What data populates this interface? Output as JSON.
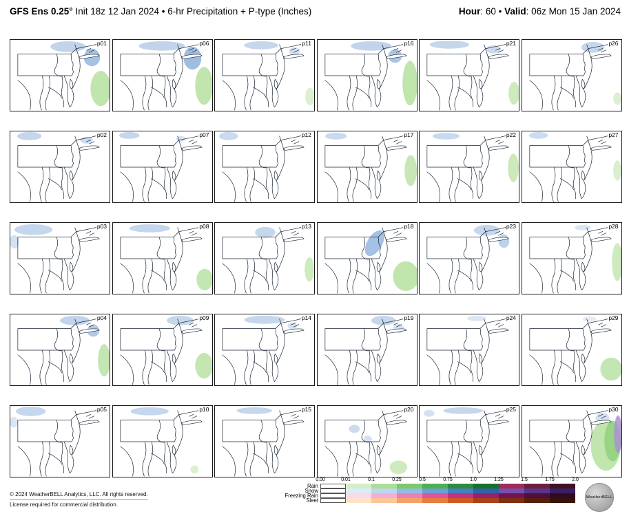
{
  "header": {
    "title_bold": "GFS Ens 0.25°",
    "title_rest": " Init 18z 12 Jan 2024 • 6-hr Precipitation + P-type (Inches)",
    "hour_label": "Hour",
    "hour_rest": ": 60 • ",
    "valid_label": "Valid",
    "valid_rest": ": 06z Mon 15 Jan 2024"
  },
  "colors": {
    "snow": "#b6cde9",
    "snow_dark": "#8fb2dc",
    "rain": "#b9e2a4",
    "rain_dark": "#8fd17c",
    "freezing": "#a992cf",
    "map_line": "#1a2433"
  },
  "panels": [
    {
      "label": "p01",
      "blobs": [
        [
          "s",
          85,
          10,
          26,
          8,
          0.85
        ],
        [
          "sd",
          120,
          26,
          12,
          13,
          0.8
        ],
        [
          "r",
          133,
          72,
          15,
          26,
          0.9
        ]
      ]
    },
    {
      "label": "p06",
      "blobs": [
        [
          "s",
          72,
          9,
          34,
          7,
          0.85
        ],
        [
          "sd",
          117,
          27,
          13,
          17,
          0.85
        ],
        [
          "r",
          134,
          68,
          13,
          28,
          0.9
        ]
      ]
    },
    {
      "label": "p11",
      "blobs": [
        [
          "s",
          68,
          8,
          25,
          6,
          0.8
        ],
        [
          "s",
          117,
          17,
          8,
          6,
          0.6
        ],
        [
          "r",
          140,
          84,
          7,
          13,
          0.5
        ]
      ]
    },
    {
      "label": "p16",
      "blobs": [
        [
          "s",
          79,
          9,
          30,
          7,
          0.85
        ],
        [
          "sd",
          114,
          24,
          10,
          10,
          0.75
        ],
        [
          "r",
          136,
          64,
          11,
          33,
          0.9
        ]
      ]
    },
    {
      "label": "p21",
      "blobs": [
        [
          "s",
          44,
          7,
          29,
          6,
          0.8
        ],
        [
          "s",
          109,
          14,
          11,
          6,
          0.7
        ],
        [
          "r",
          139,
          79,
          8,
          17,
          0.7
        ]
      ]
    },
    {
      "label": "p26",
      "blobs": [
        [
          "s",
          104,
          11,
          17,
          8,
          0.8
        ],
        [
          "r",
          140,
          87,
          6,
          9,
          0.5
        ]
      ]
    },
    {
      "label": "p02",
      "blobs": [
        [
          "s",
          28,
          7,
          18,
          6,
          0.8
        ],
        [
          "s",
          112,
          13,
          9,
          5,
          0.7
        ]
      ]
    },
    {
      "label": "p07",
      "blobs": [
        [
          "s",
          24,
          6,
          15,
          5,
          0.8
        ],
        [
          "s",
          100,
          11,
          7,
          4,
          0.6
        ]
      ]
    },
    {
      "label": "p12",
      "blobs": [
        [
          "s",
          20,
          7,
          14,
          6,
          0.75
        ]
      ]
    },
    {
      "label": "p17",
      "blobs": [
        [
          "s",
          27,
          7,
          16,
          5,
          0.75
        ],
        [
          "r",
          137,
          58,
          9,
          23,
          0.8
        ]
      ]
    },
    {
      "label": "p22",
      "blobs": [
        [
          "s",
          39,
          7,
          20,
          5,
          0.75
        ],
        [
          "r",
          138,
          54,
          8,
          21,
          0.75
        ]
      ]
    },
    {
      "label": "p27",
      "blobs": [
        [
          "s",
          24,
          6,
          14,
          5,
          0.7
        ],
        [
          "r",
          140,
          58,
          6,
          15,
          0.55
        ]
      ]
    },
    {
      "label": "p03",
      "blobs": [
        [
          "s",
          34,
          10,
          28,
          8,
          0.8
        ],
        [
          "s",
          6,
          28,
          7,
          10,
          0.6
        ]
      ]
    },
    {
      "label": "p08",
      "blobs": [
        [
          "s",
          54,
          8,
          30,
          6,
          0.8
        ],
        [
          "r",
          135,
          84,
          12,
          16,
          0.85
        ]
      ]
    },
    {
      "label": "p13",
      "blobs": [
        [
          "s",
          74,
          14,
          15,
          8,
          0.8
        ],
        [
          "r",
          139,
          69,
          7,
          18,
          0.7
        ]
      ]
    },
    {
      "label": "p18",
      "blobs": [
        [
          "sd",
          84,
          30,
          11,
          21,
          0.8,
          30
        ],
        [
          "r",
          130,
          79,
          19,
          22,
          0.9
        ]
      ]
    },
    {
      "label": "p23",
      "blobs": [
        [
          "s",
          99,
          11,
          19,
          8,
          0.8
        ],
        [
          "sd",
          124,
          27,
          8,
          10,
          0.6
        ]
      ]
    },
    {
      "label": "p28",
      "blobs": [
        [
          "s",
          89,
          7,
          12,
          4,
          0.5
        ],
        [
          "r",
          140,
          58,
          8,
          28,
          0.7
        ]
      ]
    },
    {
      "label": "p04",
      "blobs": [
        [
          "s",
          95,
          9,
          22,
          7,
          0.85
        ],
        [
          "sd",
          122,
          24,
          9,
          9,
          0.7
        ],
        [
          "r",
          138,
          68,
          9,
          24,
          0.85
        ]
      ]
    },
    {
      "label": "p09",
      "blobs": [
        [
          "s",
          99,
          9,
          20,
          7,
          0.8
        ],
        [
          "r",
          134,
          76,
          13,
          19,
          0.85
        ]
      ]
    },
    {
      "label": "p14",
      "blobs": [
        [
          "s",
          73,
          8,
          30,
          6,
          0.8
        ],
        [
          "s",
          114,
          17,
          7,
          5,
          0.6
        ]
      ]
    },
    {
      "label": "p19",
      "blobs": [
        [
          "s",
          97,
          9,
          18,
          7,
          0.8
        ],
        [
          "s",
          119,
          21,
          8,
          7,
          0.6
        ]
      ]
    },
    {
      "label": "p24",
      "blobs": [
        [
          "s",
          84,
          6,
          14,
          4,
          0.5
        ]
      ]
    },
    {
      "label": "p29",
      "blobs": [
        [
          "s",
          99,
          7,
          10,
          4,
          0.4
        ],
        [
          "r",
          131,
          81,
          16,
          17,
          0.85
        ]
      ]
    },
    {
      "label": "p05",
      "blobs": [
        [
          "s",
          30,
          8,
          22,
          7,
          0.8
        ],
        [
          "s",
          5,
          24,
          6,
          8,
          0.5
        ]
      ]
    },
    {
      "label": "p10",
      "blobs": [
        [
          "s",
          54,
          8,
          28,
          6,
          0.8
        ],
        [
          "r",
          120,
          94,
          6,
          6,
          0.5
        ]
      ]
    },
    {
      "label": "p15",
      "blobs": [
        [
          "s",
          58,
          7,
          26,
          5,
          0.8
        ]
      ]
    },
    {
      "label": "p20",
      "blobs": [
        [
          "s",
          54,
          34,
          8,
          6,
          0.7
        ],
        [
          "s",
          74,
          49,
          6,
          5,
          0.6
        ],
        [
          "r",
          119,
          91,
          13,
          10,
          0.7
        ]
      ]
    },
    {
      "label": "p25",
      "blobs": [
        [
          "s",
          64,
          7,
          29,
          5,
          0.8
        ],
        [
          "s",
          14,
          11,
          8,
          5,
          0.6
        ]
      ]
    },
    {
      "label": "p30",
      "blobs": [
        [
          "s",
          118,
          18,
          10,
          8,
          0.6
        ],
        [
          "r",
          123,
          58,
          22,
          38,
          0.9
        ],
        [
          "rd",
          133,
          52,
          12,
          30,
          0.85
        ],
        [
          "f",
          141,
          42,
          6,
          28,
          0.85
        ]
      ]
    }
  ],
  "legend": {
    "ticks": [
      "0.00",
      "0.01",
      "0.1",
      "0.25",
      "0.5",
      "0.75",
      "1.0",
      "1.25",
      "1.5",
      "1.75",
      "2.0"
    ],
    "rows": [
      {
        "label": "Rain",
        "colors": [
          "#ffffff",
          "#d5eec7",
          "#abdd97",
          "#7cc86a",
          "#4caf50",
          "#2e8b3d",
          "#176f2c",
          "#9e2a5e",
          "#6d1d42",
          "#3f1127"
        ]
      },
      {
        "label": "Snow",
        "colors": [
          "#ffffff",
          "#ddeaf7",
          "#bcd7ef",
          "#93bce4",
          "#6a9fd8",
          "#4781c4",
          "#2f62aa",
          "#7a4fa8",
          "#5a3585",
          "#3a2060"
        ]
      },
      {
        "label": "Freezing Rain",
        "colors": [
          "#ffffff",
          "#fbd9e8",
          "#f5aed0",
          "#ee7fb4",
          "#e05399",
          "#c03380",
          "#97216a",
          "#6e1554",
          "#4e0e3e",
          "#330928"
        ]
      },
      {
        "label": "Sleet",
        "colors": [
          "#ffffff",
          "#fde3c8",
          "#f9c79a",
          "#f2a368",
          "#e87d3f",
          "#d05a24",
          "#a84218",
          "#7e2f10",
          "#571f0a",
          "#361306"
        ]
      }
    ]
  },
  "footer": {
    "line1": "© 2024 WeatherBELL Analytics, LLC. All rights reserved.",
    "line2": "License required for commercial distribution."
  },
  "logo": {
    "text": "WeatherBELL"
  }
}
